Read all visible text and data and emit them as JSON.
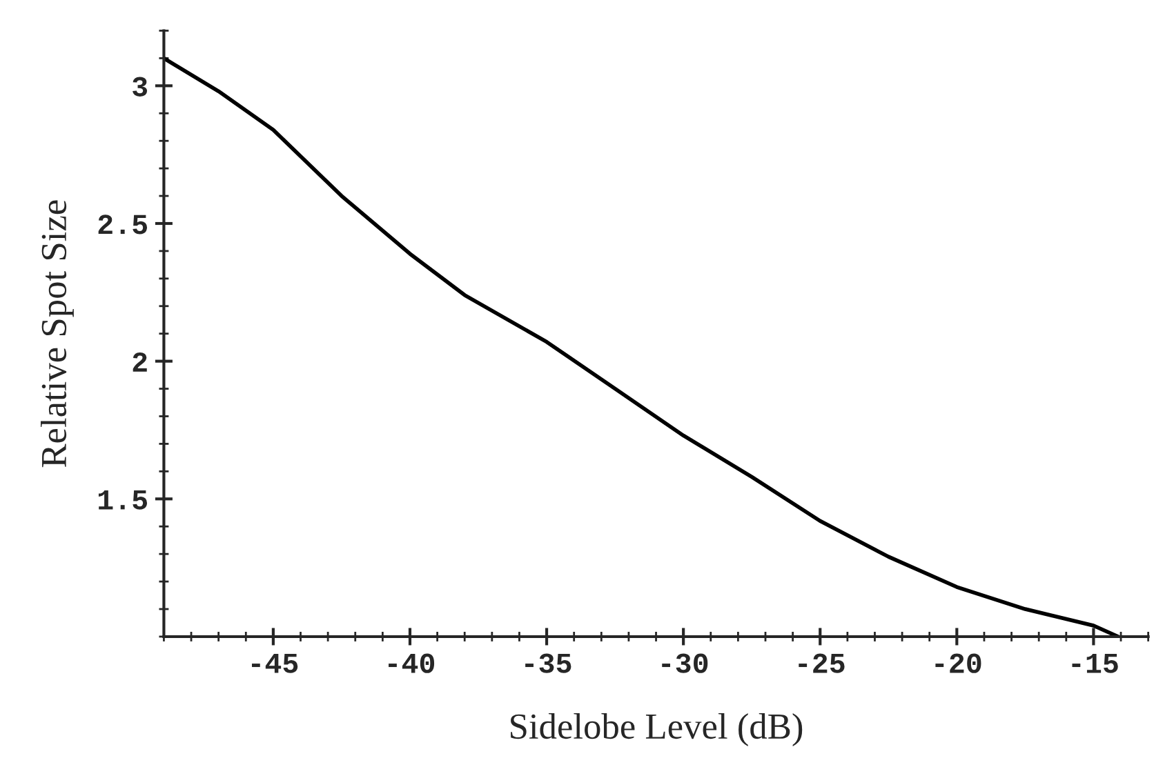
{
  "chart_data": {
    "type": "line",
    "xlabel": "Sidelobe Level (dB)",
    "ylabel": "Relative Spot Size",
    "x": [
      -49,
      -47,
      -45,
      -42.5,
      -40,
      -38,
      -35,
      -32.5,
      -30,
      -27.5,
      -25,
      -22.5,
      -20,
      -17.5,
      -15,
      -14.1
    ],
    "series": [
      {
        "color": "#000000",
        "values": [
          3.1,
          2.98,
          2.84,
          2.6,
          2.39,
          2.24,
          2.07,
          1.9,
          1.73,
          1.58,
          1.42,
          1.29,
          1.18,
          1.1,
          1.04,
          1.0
        ]
      }
    ],
    "xlim": [
      -49,
      -13
    ],
    "ylim": [
      1,
      3.2
    ],
    "xticks": [
      -45,
      -40,
      -35,
      -30,
      -25,
      -20,
      -15
    ],
    "yticks": [
      1.5,
      2,
      2.5,
      3
    ],
    "grid": false,
    "legend": false,
    "marker": "none",
    "line_style": "solid"
  }
}
